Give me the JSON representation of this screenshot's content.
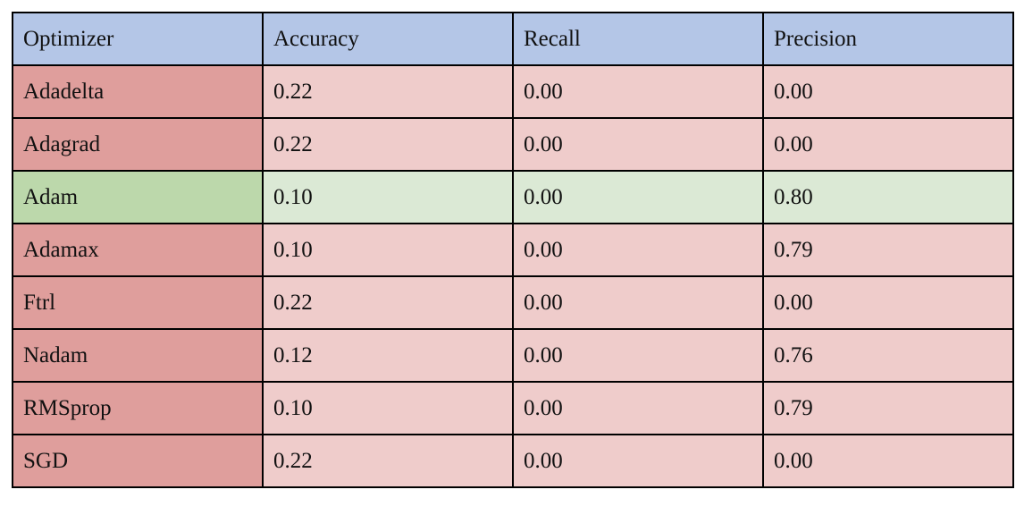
{
  "table": {
    "headers": [
      "Optimizer",
      "Accuracy",
      "Recall",
      "Precision"
    ],
    "rows": [
      {
        "optimizer": "Adadelta",
        "accuracy": "0.22",
        "recall": "0.00",
        "precision": "0.00",
        "highlight": "red"
      },
      {
        "optimizer": "Adagrad",
        "accuracy": "0.22",
        "recall": "0.00",
        "precision": "0.00",
        "highlight": "red"
      },
      {
        "optimizer": "Adam",
        "accuracy": "0.10",
        "recall": "0.00",
        "precision": "0.80",
        "highlight": "green"
      },
      {
        "optimizer": "Adamax",
        "accuracy": "0.10",
        "recall": "0.00",
        "precision": "0.79",
        "highlight": "red"
      },
      {
        "optimizer": "Ftrl",
        "accuracy": "0.22",
        "recall": "0.00",
        "precision": "0.00",
        "highlight": "red"
      },
      {
        "optimizer": "Nadam",
        "accuracy": "0.12",
        "recall": "0.00",
        "precision": "0.76",
        "highlight": "red"
      },
      {
        "optimizer": "RMSprop",
        "accuracy": "0.10",
        "recall": "0.00",
        "precision": "0.79",
        "highlight": "red"
      },
      {
        "optimizer": "SGD",
        "accuracy": "0.22",
        "recall": "0.00",
        "precision": "0.00",
        "highlight": "red"
      }
    ]
  },
  "colors": {
    "header_bg": "#b4c6e7",
    "red_name_bg": "#df9e9c",
    "red_value_bg": "#efcccb",
    "green_name_bg": "#bcd8ab",
    "green_value_bg": "#dbe9d5",
    "border": "#000000"
  }
}
